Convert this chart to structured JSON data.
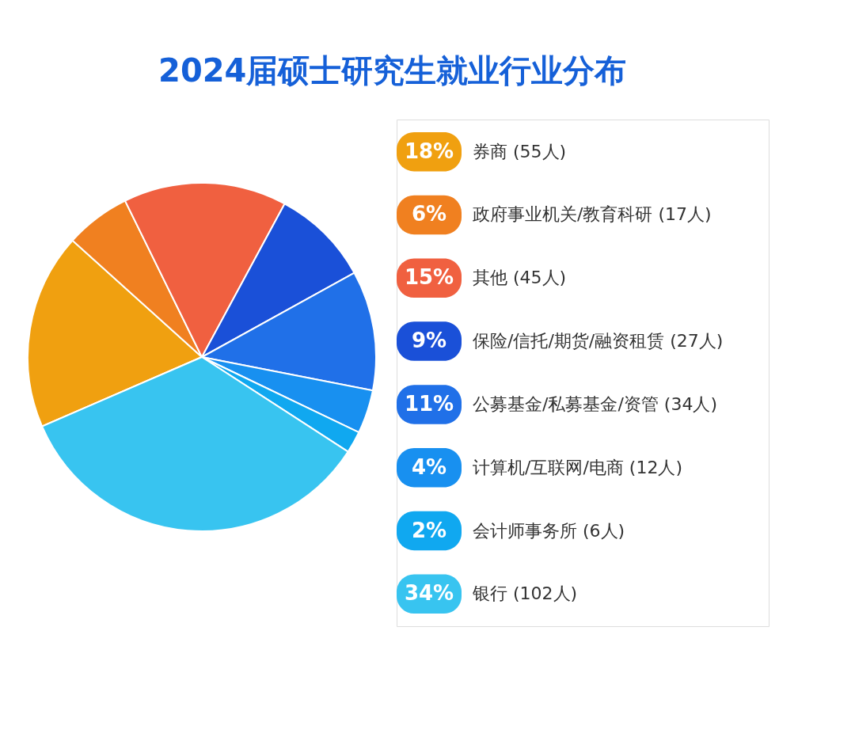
{
  "chart_data": {
    "type": "pie",
    "title": "2024届硕士研究生就业行业分布",
    "categories": [
      "券商 (55人)",
      "政府事业机关/教育科研 (17人)",
      "其他 (45人)",
      "保险/信托/期货/融资租赁 (27人)",
      "公募基金/私募基金/资管 (34人)",
      "计算机/互联网/电商 (12人)",
      "会计师事务所 (6人)",
      "银行 (102人)"
    ],
    "values": [
      18,
      6,
      15,
      9,
      11,
      4,
      2,
      34
    ],
    "value_labels": [
      "18%",
      "6%",
      "15%",
      "9%",
      "11%",
      "4%",
      "2%",
      "34%"
    ],
    "colors": [
      "#f0a010",
      "#f08020",
      "#f06040",
      "#1a50d8",
      "#2070e8",
      "#1890f0",
      "#10a8f0",
      "#38c4f0"
    ],
    "legend": "right"
  }
}
